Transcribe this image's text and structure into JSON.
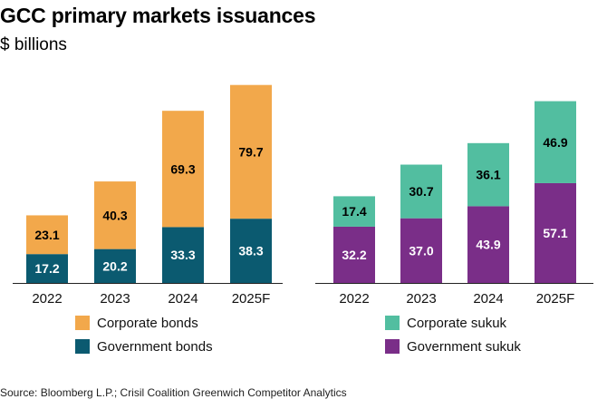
{
  "header": {
    "title": "GCC primary markets issuances",
    "subtitle": "$ billions"
  },
  "source": "Source: Bloomberg L.P.; Crisil Coalition Greenwich Competitor Analytics",
  "colors": {
    "corporate_bonds": "#F2A84B",
    "government_bonds": "#0B5A70",
    "corporate_sukuk": "#52BEA0",
    "government_sukuk": "#7A2E88",
    "axis": "#222222",
    "label_dark": "#000000",
    "label_light": "#FFFFFF"
  },
  "chart_data": [
    {
      "type": "bar",
      "stacked": true,
      "categories": [
        "2022",
        "2023",
        "2024",
        "2025F"
      ],
      "series": [
        {
          "name": "Government bonds",
          "values": [
            17.2,
            20.2,
            33.3,
            38.3
          ]
        },
        {
          "name": "Corporate bonds",
          "values": [
            23.1,
            40.3,
            69.3,
            79.7
          ]
        }
      ],
      "ylim": [
        0,
        120
      ],
      "legend": [
        "Corporate bonds",
        "Government bonds"
      ]
    },
    {
      "type": "bar",
      "stacked": true,
      "categories": [
        "2022",
        "2023",
        "2024",
        "2025F"
      ],
      "series": [
        {
          "name": "Government sukuk",
          "values": [
            32.2,
            37.0,
            43.9,
            57.1
          ]
        },
        {
          "name": "Corporate sukuk",
          "values": [
            17.4,
            30.7,
            36.1,
            46.9
          ]
        }
      ],
      "ylim": [
        0,
        110
      ],
      "legend": [
        "Corporate sukuk",
        "Government sukuk"
      ]
    }
  ]
}
